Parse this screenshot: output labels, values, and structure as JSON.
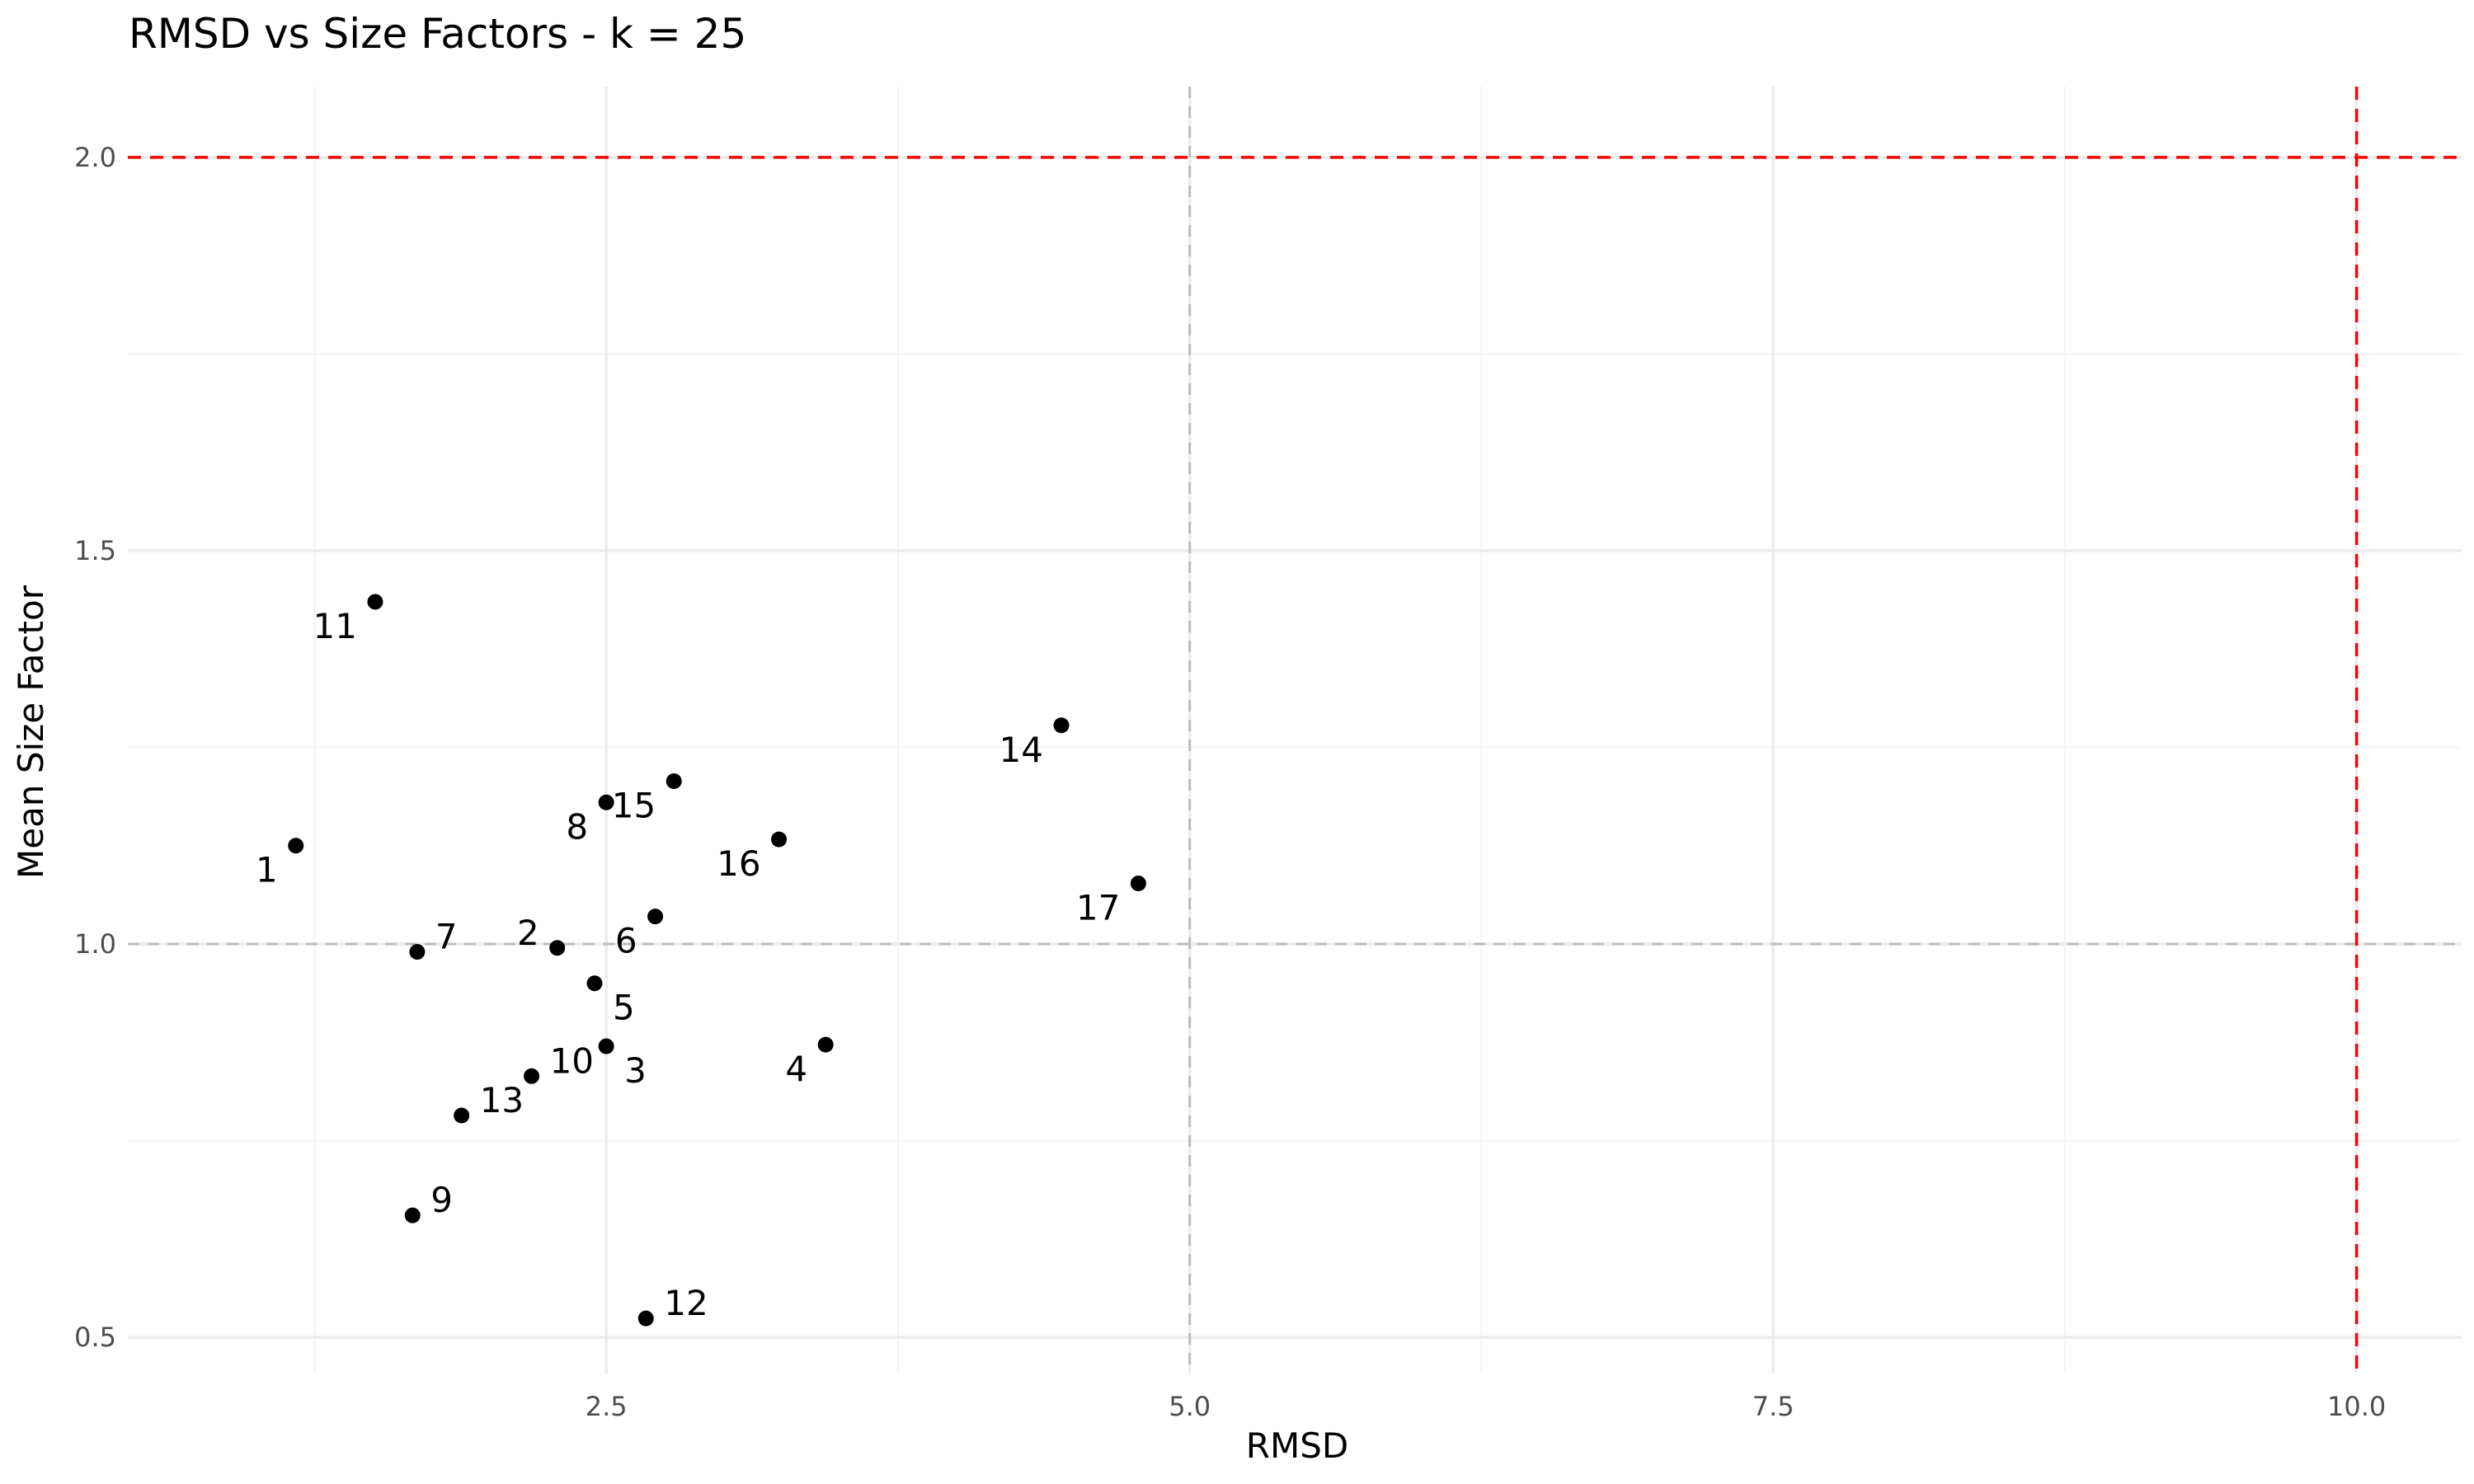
{
  "chart_data": {
    "type": "scatter",
    "title": "RMSD vs Size Factors - k = 25",
    "xlabel": "RMSD",
    "ylabel": "Mean Size Factor",
    "xlim": [
      0.45,
      10.45
    ],
    "ylim": [
      0.455,
      2.09
    ],
    "x_ticks": [
      2.5,
      5.0,
      7.5,
      10.0
    ],
    "x_tick_labels": [
      "2.5",
      "5.0",
      "7.5",
      "10.0"
    ],
    "y_ticks": [
      0.5,
      1.0,
      1.5,
      2.0
    ],
    "y_tick_labels": [
      "0.5",
      "1.0",
      "1.5",
      "2.0"
    ],
    "grid": true,
    "reference_lines": [
      {
        "orientation": "vertical",
        "value": 5.0,
        "style": "dashed",
        "color": "#bdbdbd"
      },
      {
        "orientation": "horizontal",
        "value": 1.0,
        "style": "dashed",
        "color": "#bdbdbd"
      },
      {
        "orientation": "vertical",
        "value": 10.0,
        "style": "dashed",
        "color": "#ff0000"
      },
      {
        "orientation": "horizontal",
        "value": 2.0,
        "style": "dashed",
        "color": "#ff0000"
      }
    ],
    "points": [
      {
        "label": "1",
        "x": 1.17,
        "y": 1.125,
        "label_side": "lower-left"
      },
      {
        "label": "2",
        "x": 2.29,
        "y": 0.995,
        "label_side": "upper-left"
      },
      {
        "label": "3",
        "x": 2.5,
        "y": 0.87,
        "label_side": "lower-right"
      },
      {
        "label": "4",
        "x": 3.44,
        "y": 0.872,
        "label_side": "lower-left"
      },
      {
        "label": "5",
        "x": 2.45,
        "y": 0.95,
        "label_side": "lower-right"
      },
      {
        "label": "6",
        "x": 2.71,
        "y": 1.035,
        "label_side": "lower-left"
      },
      {
        "label": "7",
        "x": 1.69,
        "y": 0.99,
        "label_side": "upper-right"
      },
      {
        "label": "8",
        "x": 2.5,
        "y": 1.18,
        "label_side": "lower-left"
      },
      {
        "label": "9",
        "x": 1.67,
        "y": 0.655,
        "label_side": "upper-right"
      },
      {
        "label": "10",
        "x": 2.18,
        "y": 0.832,
        "label_side": "upper-right"
      },
      {
        "label": "11",
        "x": 1.51,
        "y": 1.435,
        "label_side": "lower-left"
      },
      {
        "label": "12",
        "x": 2.67,
        "y": 0.524,
        "label_side": "upper-right"
      },
      {
        "label": "13",
        "x": 1.88,
        "y": 0.782,
        "label_side": "upper-right"
      },
      {
        "label": "14",
        "x": 4.45,
        "y": 1.278,
        "label_side": "lower-left"
      },
      {
        "label": "15",
        "x": 2.79,
        "y": 1.207,
        "label_side": "lower-left"
      },
      {
        "label": "16",
        "x": 3.24,
        "y": 1.133,
        "label_side": "lower-left"
      },
      {
        "label": "17",
        "x": 4.78,
        "y": 1.077,
        "label_side": "lower-left"
      }
    ],
    "colors": {
      "point": "#000000",
      "grid_major": "#ebebeb",
      "grid_minor": "#f4f4f4",
      "reference_grey": "#bdbdbd",
      "reference_red": "#ff0000"
    }
  }
}
